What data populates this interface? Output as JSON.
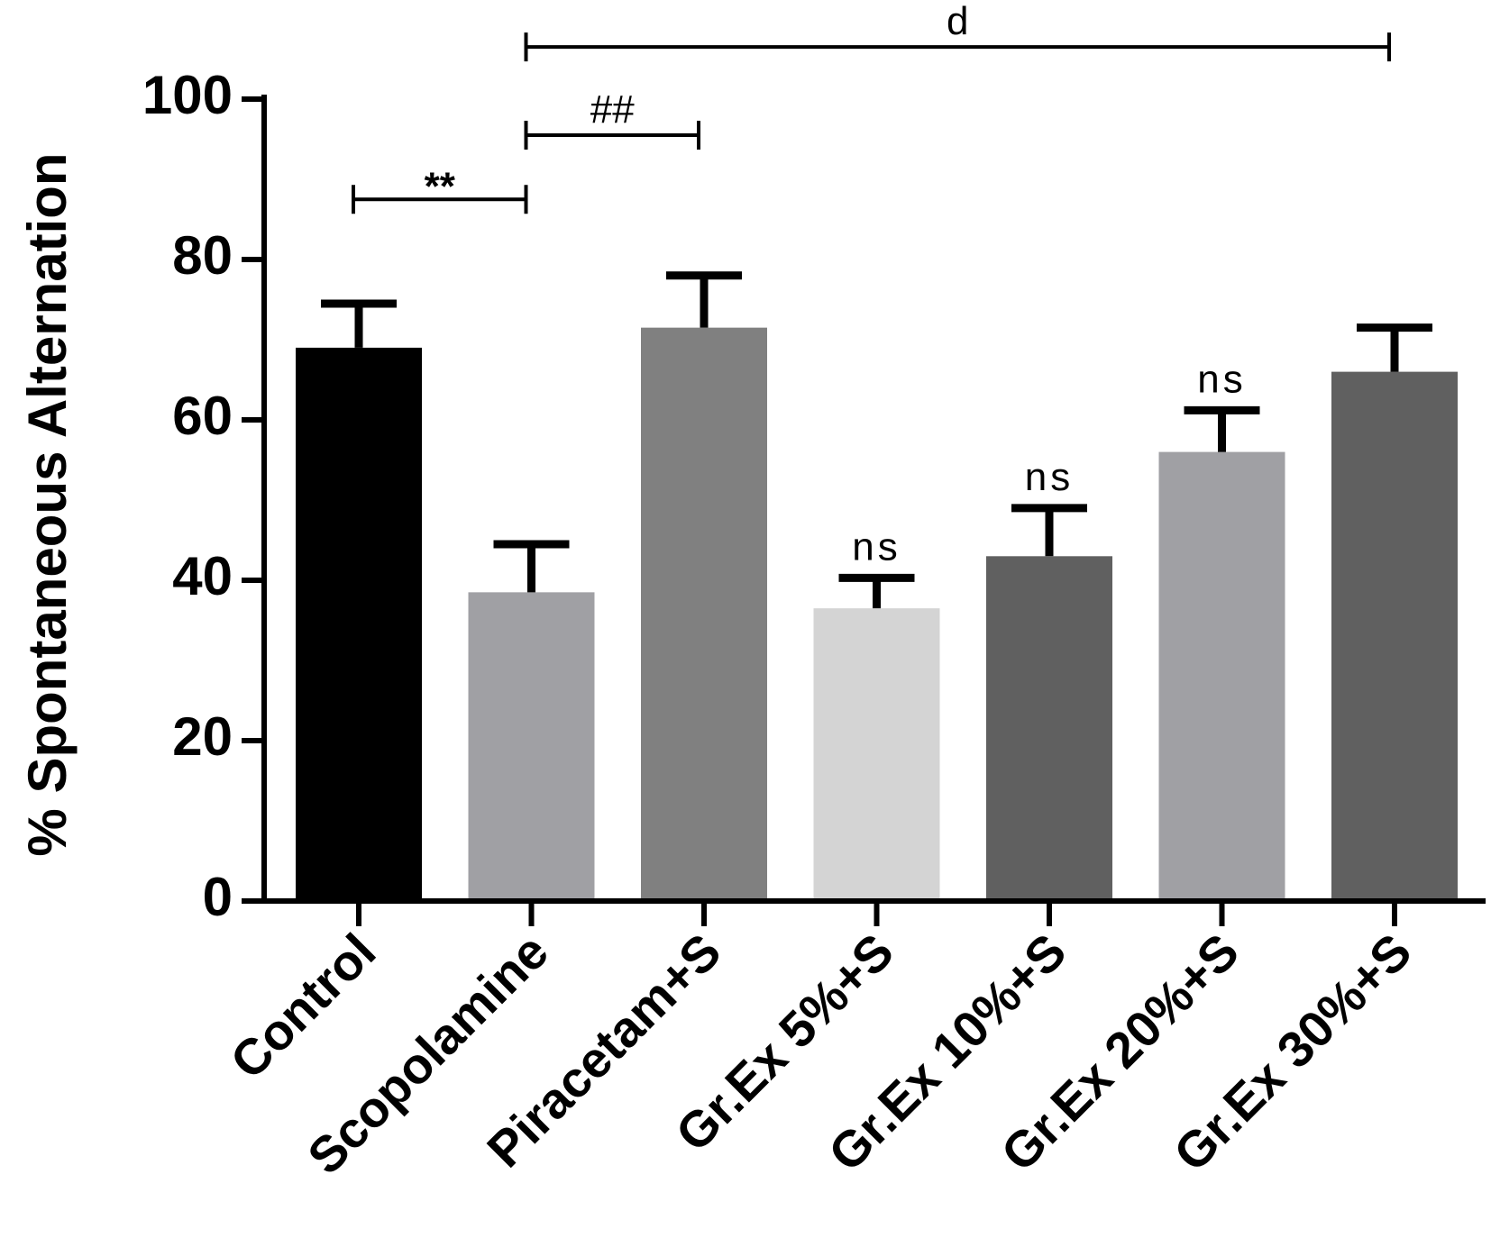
{
  "chart_data": {
    "type": "bar",
    "title": "",
    "xlabel": "",
    "ylabel": "% Spontaneous Alternation",
    "ylim": [
      0,
      100
    ],
    "yticks": [
      "0",
      "20",
      "40",
      "60",
      "80",
      "100"
    ],
    "categories": [
      "Control",
      "Scopolamine",
      "Piracetam+S",
      "Gr.Ex 5%+S",
      "Gr.Ex 10%+S",
      "Gr.Ex 20%+S",
      "Gr.Ex 30%+S"
    ],
    "values": [
      69,
      38.5,
      71.5,
      36.5,
      43,
      56,
      66
    ],
    "errors": [
      5.5,
      6,
      6.5,
      3.8,
      6,
      5.2,
      5.5
    ],
    "colors": [
      "#000000",
      "#a0a0a4",
      "#808080",
      "#d4d4d4",
      "#606060",
      "#a0a0a4",
      "#606060"
    ],
    "annotations": {
      "bar_labels": [
        "",
        "",
        "",
        "ns",
        "ns",
        "ns",
        ""
      ],
      "comparisons": [
        {
          "from": 0,
          "to": 1,
          "y": 87.5,
          "label": "**"
        },
        {
          "from": 1,
          "to": 2,
          "y": 95.5,
          "label": "##"
        },
        {
          "from": 1,
          "to": 6,
          "y": 106.5,
          "label": "d"
        }
      ]
    }
  }
}
